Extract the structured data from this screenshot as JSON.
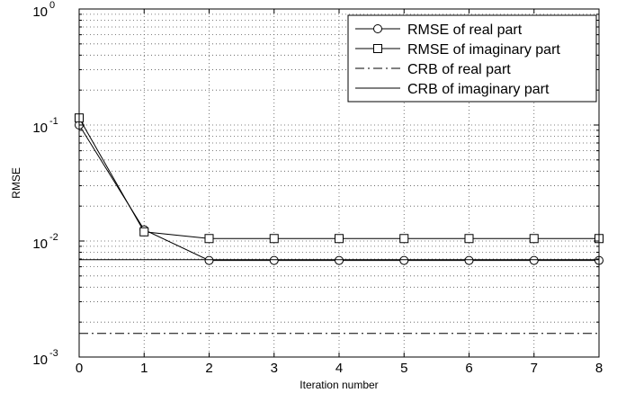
{
  "chart_data": {
    "type": "line",
    "title": "",
    "xlabel": "Iteration number",
    "ylabel": "RMSE",
    "xlim": [
      0,
      8
    ],
    "ylim": [
      0.001,
      1
    ],
    "y_scale": "log",
    "grid": true,
    "x": [
      0,
      1,
      2,
      3,
      4,
      5,
      6,
      7,
      8
    ],
    "x_ticks": [
      "0",
      "1",
      "2",
      "3",
      "4",
      "5",
      "6",
      "7",
      "8"
    ],
    "y_ticks": [
      {
        "value": 0.001,
        "base": "10",
        "exp": "-3"
      },
      {
        "value": 0.01,
        "base": "10",
        "exp": "-2"
      },
      {
        "value": 0.1,
        "base": "10",
        "exp": "-1"
      },
      {
        "value": 1,
        "base": "10",
        "exp": "0"
      }
    ],
    "legend_position": "top-right",
    "series": [
      {
        "name": "RMSE of real part",
        "marker": "circle",
        "dash": "solid",
        "values": [
          0.1,
          0.0125,
          0.0068,
          0.0068,
          0.0068,
          0.0068,
          0.0068,
          0.0068,
          0.0068
        ]
      },
      {
        "name": "RMSE of imaginary part",
        "marker": "square",
        "dash": "solid",
        "values": [
          0.115,
          0.012,
          0.0105,
          0.0105,
          0.0105,
          0.0105,
          0.0105,
          0.0105,
          0.0105
        ]
      },
      {
        "name": "CRB of real part",
        "marker": "none",
        "dash": "dashdot",
        "values": [
          0.0016,
          0.0016,
          0.0016,
          0.0016,
          0.0016,
          0.0016,
          0.0016,
          0.0016,
          0.0016
        ]
      },
      {
        "name": "CRB of imaginary part",
        "marker": "none",
        "dash": "solid",
        "values": [
          0.0069,
          0.0069,
          0.0069,
          0.0069,
          0.0069,
          0.0069,
          0.0069,
          0.0069,
          0.0069
        ]
      }
    ],
    "colors": {
      "line": "#000000",
      "grid": "#555555",
      "background": "#ffffff"
    }
  }
}
